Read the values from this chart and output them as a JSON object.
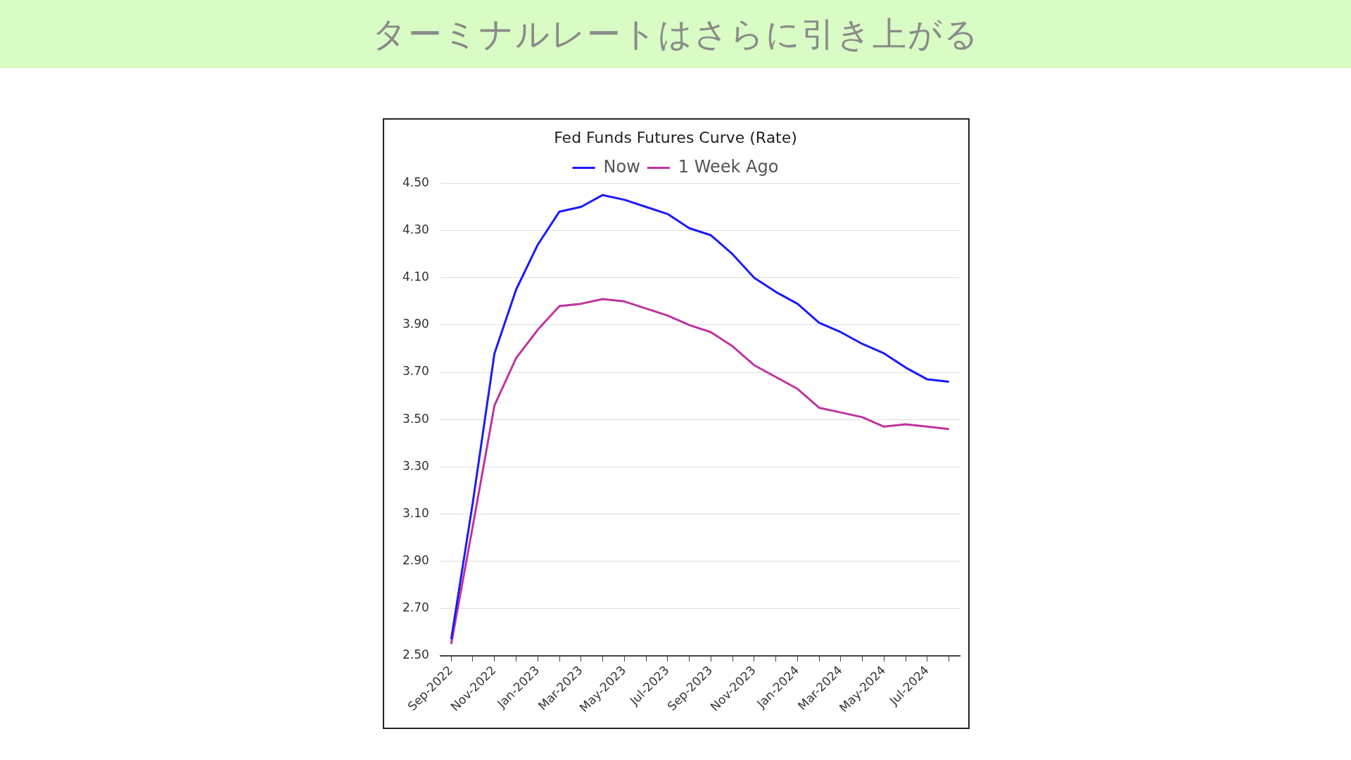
{
  "chart_data": {
    "type": "line",
    "title": "ターミナルレートはさらに引き上がる",
    "subtitle": "Fed Funds Futures Curve (Rate)",
    "categories": [
      "Sep-2022",
      null,
      "Nov-2022",
      null,
      "Jan-2023",
      null,
      "Mar-2023",
      null,
      "May-2023",
      null,
      "Jul-2023",
      null,
      "Sep-2023",
      null,
      "Nov-2023",
      null,
      "Jan-2024",
      null,
      "Mar-2024",
      null,
      "May-2024",
      null,
      "Jul-2024",
      null
    ],
    "series": [
      {
        "name": "Now",
        "color": "#1a1aff",
        "values": [
          2.57,
          3.15,
          3.78,
          4.05,
          4.24,
          4.38,
          4.4,
          4.45,
          4.43,
          4.4,
          4.37,
          4.31,
          4.28,
          4.2,
          4.1,
          4.04,
          3.99,
          3.91,
          3.87,
          3.82,
          3.78,
          3.72,
          3.67,
          3.66
        ]
      },
      {
        "name": "1 Week Ago",
        "color": "#c0329f",
        "values": [
          2.55,
          3.05,
          3.56,
          3.76,
          3.88,
          3.98,
          3.99,
          4.01,
          4.0,
          3.97,
          3.94,
          3.9,
          3.87,
          3.81,
          3.73,
          3.68,
          3.63,
          3.55,
          3.53,
          3.51,
          3.47,
          3.48,
          3.47,
          3.46
        ]
      }
    ],
    "ylim": [
      2.5,
      4.5
    ],
    "yticks": [
      {
        "value": 2.5,
        "label": "2.50"
      },
      {
        "value": 2.7,
        "label": "2.70"
      },
      {
        "value": 2.9,
        "label": "2.90"
      },
      {
        "value": 3.1,
        "label": "3.10"
      },
      {
        "value": 3.3,
        "label": "3.30"
      },
      {
        "value": 3.5,
        "label": "3.50"
      },
      {
        "value": 3.7,
        "label": "3.70"
      },
      {
        "value": 3.9,
        "label": "3.90"
      },
      {
        "value": 4.1,
        "label": "4.10"
      },
      {
        "value": 4.3,
        "label": "4.30"
      },
      {
        "value": 4.5,
        "label": "4.50"
      }
    ],
    "grid": "y",
    "legend": "top",
    "marker": "none",
    "line_style": "solid"
  }
}
